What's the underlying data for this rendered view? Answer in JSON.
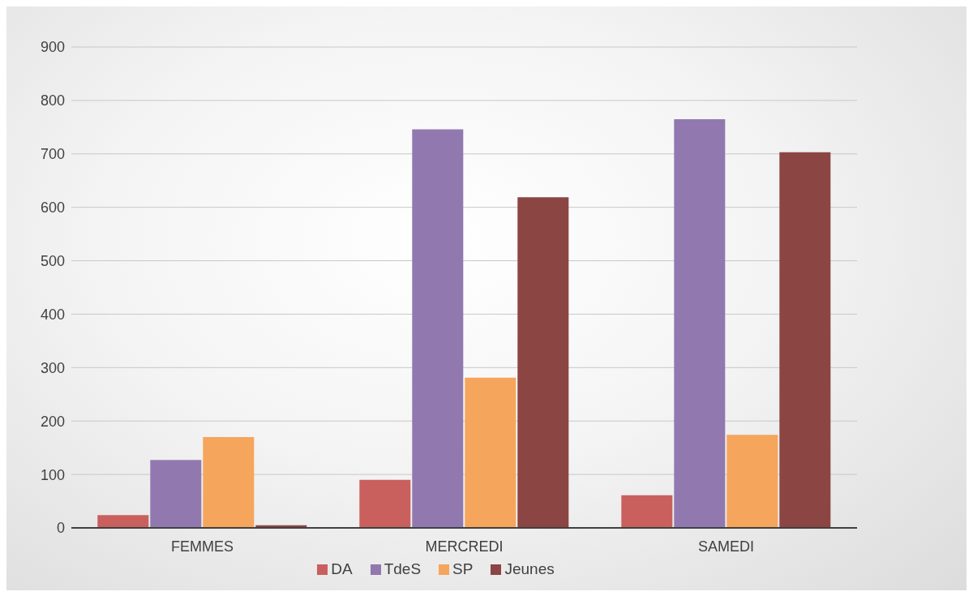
{
  "chart_data": {
    "type": "bar",
    "categories": [
      "FEMMES",
      "MERCREDI",
      "SAMEDI"
    ],
    "series": [
      {
        "name": "DA",
        "color": "#c9605e",
        "values": [
          24,
          90,
          61
        ]
      },
      {
        "name": "TdeS",
        "color": "#9179b0",
        "values": [
          127,
          746,
          765
        ]
      },
      {
        "name": "SP",
        "color": "#f5a55c",
        "values": [
          170,
          281,
          174
        ]
      },
      {
        "name": "Jeunes",
        "color": "#8b4543",
        "values": [
          5,
          619,
          703
        ]
      }
    ],
    "ylim": [
      0,
      900
    ],
    "yticks": [
      0,
      100,
      200,
      300,
      400,
      500,
      600,
      700,
      800,
      900
    ],
    "grid": "y",
    "legend": "bottom"
  }
}
